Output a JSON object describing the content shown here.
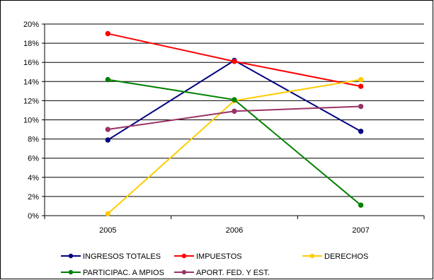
{
  "chart_data": {
    "type": "line",
    "title": "",
    "xlabel": "",
    "ylabel": "",
    "categories": [
      "2005",
      "2006",
      "2007"
    ],
    "y_ticks": [
      "0%",
      "2%",
      "4%",
      "6%",
      "8%",
      "10%",
      "12%",
      "14%",
      "16%",
      "18%",
      "20%"
    ],
    "ylim": [
      0,
      20
    ],
    "grid": "horizontal",
    "legend_position": "bottom",
    "series": [
      {
        "name": "INGRESOS TOTALES",
        "color": "#000080",
        "values": [
          7.9,
          16.2,
          8.8
        ]
      },
      {
        "name": "IMPUESTOS",
        "color": "#ff0000",
        "values": [
          19.0,
          16.1,
          13.5
        ]
      },
      {
        "name": "DERECHOS",
        "color": "#ffcc00",
        "values": [
          0.2,
          12.0,
          14.2
        ]
      },
      {
        "name": "PARTICIPAC. A MPIOS",
        "color": "#008000",
        "values": [
          14.2,
          12.1,
          1.1
        ]
      },
      {
        "name": "APORT. FED. Y EST.",
        "color": "#993366",
        "values": [
          9.0,
          10.9,
          11.4
        ]
      }
    ]
  }
}
